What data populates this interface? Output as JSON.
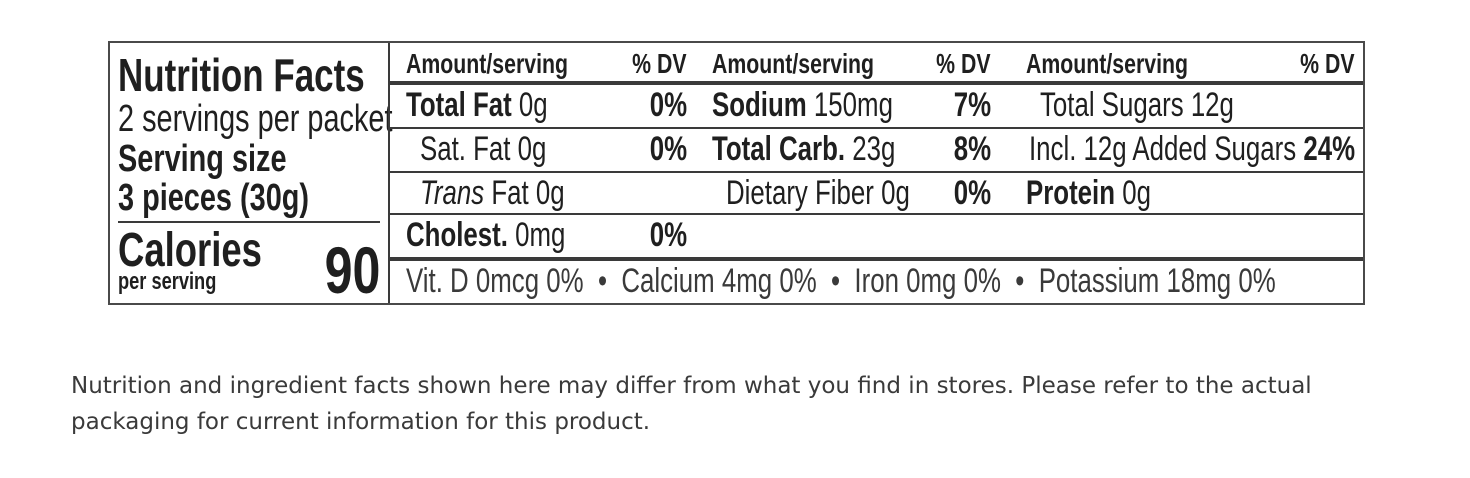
{
  "nutrition_label": {
    "title": "Nutrition Facts",
    "servings_per_container": "2 servings per packet",
    "serving_size_label": "Serving size",
    "serving_size_value": "3 pieces (30g)",
    "calories_label": "Calories",
    "calories_sub": "per serving",
    "calories_value": "90",
    "header": {
      "amount_col1": "Amount/serving",
      "dv_col1": "% DV",
      "amount_col2": "Amount/serving",
      "dv_col2": "% DV",
      "amount_col3": "Amount/serving",
      "dv_col3": "% DV"
    },
    "col1": {
      "total_fat_label": "Total Fat",
      "total_fat_amount": "0g",
      "total_fat_dv": "0%",
      "sat_fat_label": "Sat. Fat",
      "sat_fat_amount": "0g",
      "sat_fat_dv": "0%",
      "trans_fat_italic": "Trans",
      "trans_fat_rest": "Fat 0g",
      "cholest_label": "Cholest.",
      "cholest_amount": "0mg",
      "cholest_dv": "0%"
    },
    "col2": {
      "sodium_label": "Sodium",
      "sodium_amount": "150mg",
      "sodium_dv": "7%",
      "carb_label": "Total Carb.",
      "carb_amount": "23g",
      "carb_dv": "8%",
      "fiber_label": "Dietary Fiber 0g",
      "fiber_dv": "0%"
    },
    "col3": {
      "total_sugars": "Total Sugars 12g",
      "added_sugars_label": "Incl. 12g Added Sugars",
      "added_sugars_dv": "24%",
      "protein_label": "Protein",
      "protein_amount": "0g"
    },
    "micronutrients": "Vit. D 0mcg 0%  •  Calcium 4mg 0%  •  Iron 0mg 0%  •  Potassium 18mg 0%"
  },
  "disclaimer": "Nutrition and ingredient facts shown here may differ from what you find in stores. Please refer to the actual packaging for current information for this product."
}
